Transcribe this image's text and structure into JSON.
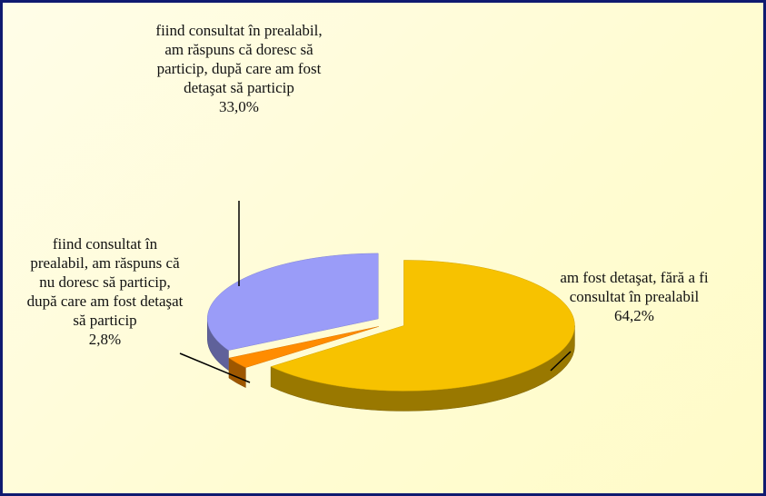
{
  "chart_data": {
    "type": "pie",
    "categories": [
      "am fost detaşat,  fără a fi consultat în prealabil",
      "fiind consultat în prealabil, am răspuns că nu doresc să particip, după care am fost detaşat să particip",
      "fiind consultat în prealabil, am răspuns că doresc să particip, după care am fost detaşat să particip"
    ],
    "values": [
      64.2,
      2.8,
      33.0
    ],
    "value_labels": [
      "64,2%",
      "2,8%",
      "33,0%"
    ],
    "colors": [
      "#f7c200",
      "#ff8c00",
      "#9a9cf8"
    ]
  }
}
